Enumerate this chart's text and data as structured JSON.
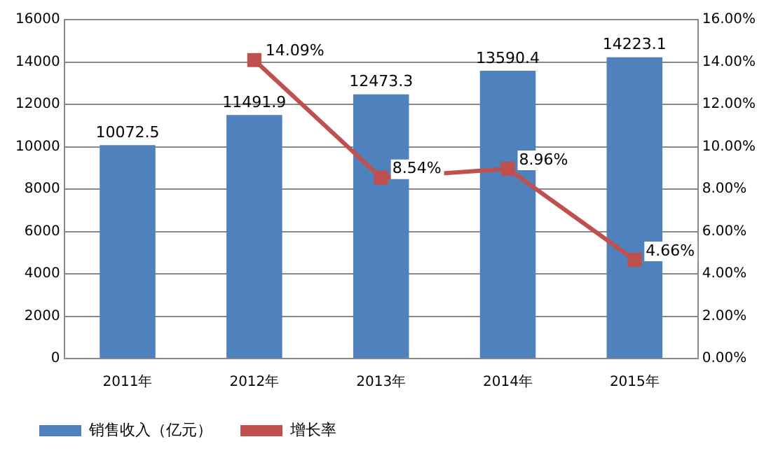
{
  "chart_data": {
    "type": "bar",
    "categories": [
      "2011年",
      "2012年",
      "2013年",
      "2014年",
      "2015年"
    ],
    "series": [
      {
        "name": "销售收入（亿元）",
        "color": "#4f81bd",
        "values": [
          10072.5,
          11491.9,
          12473.3,
          13590.4,
          14223.1
        ],
        "value_labels": [
          "10072.5",
          "11491.9",
          "12473.3",
          "13590.4",
          "14223.1"
        ]
      },
      {
        "name": "增长率",
        "type": "line",
        "axis": "y2",
        "color": "#c0504d",
        "marker": "square",
        "values": [
          null,
          14.09,
          8.54,
          8.96,
          4.66
        ],
        "value_labels": [
          null,
          "14.09%",
          "8.54%",
          "8.96%",
          "4.66%"
        ]
      }
    ],
    "ylim": [
      0,
      16000
    ],
    "yticks": [
      0,
      2000,
      4000,
      6000,
      8000,
      10000,
      12000,
      14000,
      16000
    ],
    "y2lim": [
      0,
      16
    ],
    "y2ticks": [
      {
        "value": 0,
        "label": "0.00%"
      },
      {
        "value": 2,
        "label": "2.00%"
      },
      {
        "value": 4,
        "label": "4.00%"
      },
      {
        "value": 6,
        "label": "6.00%"
      },
      {
        "value": 8,
        "label": "8.00%"
      },
      {
        "value": 10,
        "label": "10.00%"
      },
      {
        "value": 12,
        "label": "12.00%"
      },
      {
        "value": 14,
        "label": "14.00%"
      },
      {
        "value": 16,
        "label": "16.00%"
      }
    ],
    "grid": "y",
    "legend": "bottom"
  }
}
